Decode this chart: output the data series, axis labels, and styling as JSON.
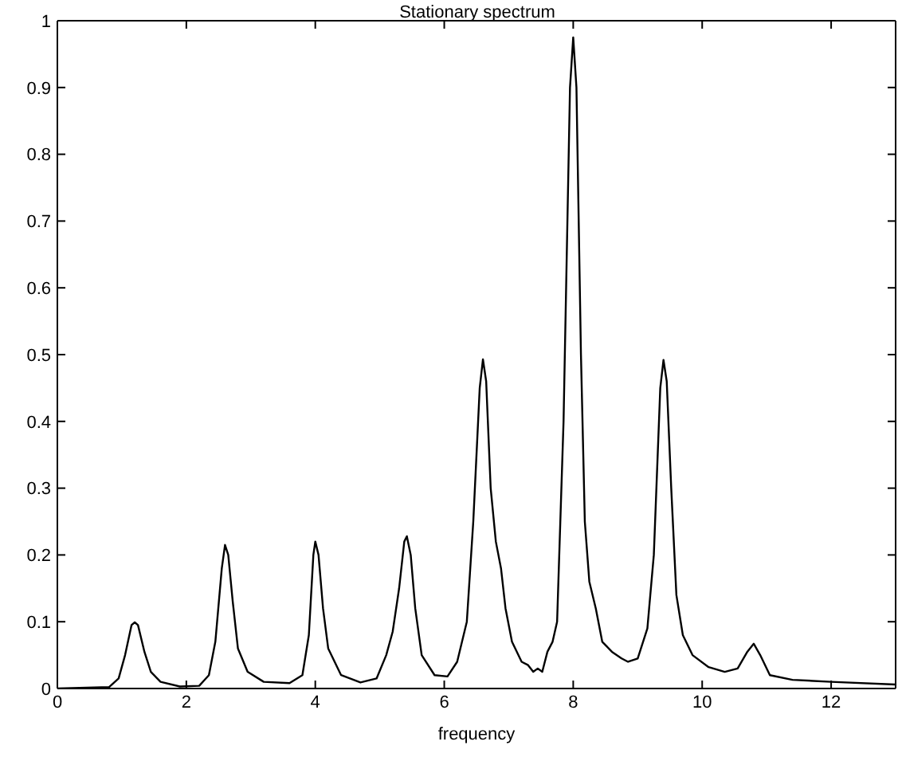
{
  "chart_data": {
    "type": "line",
    "title": "Stationary spectrum",
    "xlabel": "frequency",
    "x": [
      0,
      0.8,
      0.95,
      1.05,
      1.15,
      1.2,
      1.25,
      1.35,
      1.45,
      1.6,
      1.9,
      2.2,
      2.35,
      2.45,
      2.55,
      2.6,
      2.65,
      2.72,
      2.8,
      2.95,
      3.2,
      3.6,
      3.8,
      3.9,
      3.97,
      4.0,
      4.05,
      4.12,
      4.2,
      4.4,
      4.7,
      4.95,
      5.1,
      5.2,
      5.3,
      5.38,
      5.42,
      5.48,
      5.55,
      5.65,
      5.85,
      6.05,
      6.2,
      6.35,
      6.45,
      6.55,
      6.6,
      6.65,
      6.72,
      6.8,
      6.88,
      6.95,
      7.05,
      7.2,
      7.3,
      7.38,
      7.45,
      7.52,
      7.6,
      7.68,
      7.75,
      7.85,
      7.95,
      8.0,
      8.05,
      8.12,
      8.18,
      8.25,
      8.35,
      8.45,
      8.6,
      8.75,
      8.85,
      9.0,
      9.15,
      9.25,
      9.35,
      9.4,
      9.45,
      9.52,
      9.6,
      9.7,
      9.85,
      10.1,
      10.35,
      10.55,
      10.7,
      10.8,
      10.9,
      11.05,
      11.4,
      12,
      13
    ],
    "series": [
      {
        "color": "#000000",
        "values": [
          0,
          0.002,
          0.015,
          0.05,
          0.095,
          0.099,
          0.095,
          0.055,
          0.025,
          0.01,
          0.003,
          0.004,
          0.02,
          0.07,
          0.18,
          0.215,
          0.2,
          0.13,
          0.06,
          0.025,
          0.01,
          0.008,
          0.02,
          0.08,
          0.2,
          0.22,
          0.2,
          0.12,
          0.06,
          0.02,
          0.009,
          0.015,
          0.05,
          0.085,
          0.15,
          0.22,
          0.228,
          0.2,
          0.12,
          0.05,
          0.02,
          0.018,
          0.04,
          0.1,
          0.25,
          0.45,
          0.493,
          0.46,
          0.3,
          0.22,
          0.18,
          0.12,
          0.07,
          0.04,
          0.035,
          0.025,
          0.03,
          0.025,
          0.055,
          0.07,
          0.1,
          0.4,
          0.9,
          0.975,
          0.9,
          0.5,
          0.25,
          0.16,
          0.12,
          0.07,
          0.055,
          0.045,
          0.04,
          0.045,
          0.09,
          0.2,
          0.45,
          0.492,
          0.46,
          0.3,
          0.14,
          0.08,
          0.05,
          0.032,
          0.025,
          0.03,
          0.055,
          0.067,
          0.05,
          0.02,
          0.013,
          0.01,
          0.006
        ]
      }
    ],
    "xlim": [
      0,
      13
    ],
    "xticks": [
      0,
      2,
      4,
      6,
      8,
      10,
      12
    ],
    "ylim": [
      0,
      1
    ],
    "yticks": [
      0,
      0.1,
      0.2,
      0.3,
      0.4,
      0.5,
      0.6,
      0.7,
      0.8,
      0.9,
      1
    ],
    "grid": false,
    "legend": false,
    "marker": "none",
    "line_style": "solid"
  }
}
